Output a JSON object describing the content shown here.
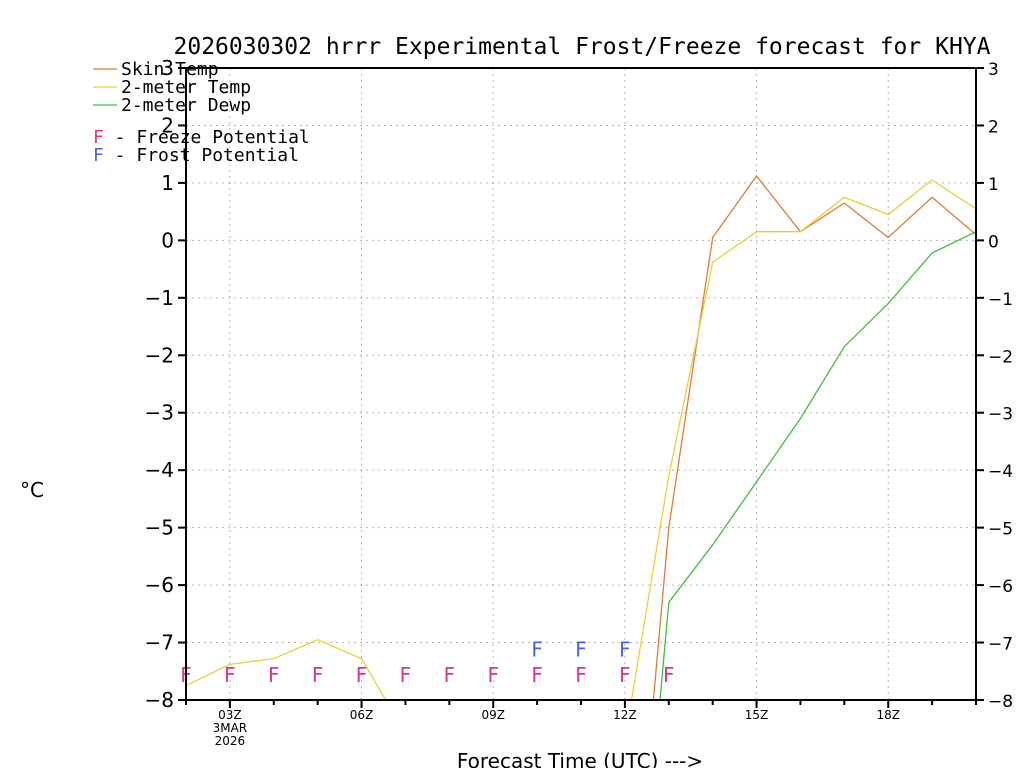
{
  "chart_data": {
    "type": "line",
    "title": "2026030302 hrrr Experimental Frost/Freeze forecast for KHYA",
    "ylabel": "°C",
    "xlabel": "Forecast Time (UTC) --->",
    "ylim": [
      -8,
      3
    ],
    "xlim": [
      2,
      20
    ],
    "yticks": [
      3,
      2,
      1,
      0,
      -1,
      -2,
      -3,
      -4,
      -5,
      -6,
      -7,
      -8
    ],
    "ytick_labels": [
      "3",
      "2",
      "1",
      "0",
      "−1",
      "−2",
      "−3",
      "−4",
      "−5",
      "−6",
      "−7",
      "−8"
    ],
    "xticks": [
      {
        "x": 3,
        "label": "03Z",
        "sub": [
          "3MAR",
          "2026"
        ]
      },
      {
        "x": 6,
        "label": "06Z",
        "sub": []
      },
      {
        "x": 9,
        "label": "09Z",
        "sub": []
      },
      {
        "x": 12,
        "label": "12Z",
        "sub": []
      },
      {
        "x": 15,
        "label": "15Z",
        "sub": []
      },
      {
        "x": 18,
        "label": "18Z",
        "sub": []
      }
    ],
    "grid": true,
    "legend": [
      {
        "name": "Skin Temp",
        "color": "#e07b39"
      },
      {
        "name": "2-meter Temp",
        "color": "#e8d03a"
      },
      {
        "name": "2-meter Dewp",
        "color": "#3cc23c"
      }
    ],
    "marker_legend": [
      {
        "symbol": "F",
        "text": " - Freeze Potential",
        "color": "#e0348c"
      },
      {
        "symbol": "F",
        "text": " - Frost Potential",
        "color": "#4a62d8"
      }
    ],
    "series": [
      {
        "name": "Skin Temp",
        "color": "#e07b39",
        "x": [
          12.65,
          13,
          14,
          15,
          16,
          17,
          18,
          19,
          20
        ],
        "y": [
          -8,
          -5.0,
          0.05,
          1.12,
          0.15,
          0.65,
          0.05,
          0.75,
          0.1
        ]
      },
      {
        "name": "2-meter Temp",
        "color": "#e8d03a",
        "x": [
          2,
          3,
          4,
          5,
          6,
          6.55,
          12.15,
          13,
          14,
          15,
          16,
          17,
          18,
          19,
          20
        ],
        "y": [
          -7.75,
          -7.38,
          -7.28,
          -6.95,
          -7.28,
          -8,
          -8,
          -4.1,
          -0.38,
          0.15,
          0.15,
          0.75,
          0.45,
          1.05,
          0.55
        ]
      },
      {
        "name": "2-meter Dewp",
        "color": "#3cc23c",
        "x": [
          12.8,
          13,
          14,
          15,
          16,
          17,
          18,
          19,
          20
        ],
        "y": [
          -8,
          -6.3,
          -5.3,
          -4.2,
          -3.1,
          -1.85,
          -1.1,
          -0.22,
          0.15
        ]
      }
    ],
    "freeze_markers": {
      "symbol": "F",
      "color": "#e0348c",
      "x": [
        2,
        3,
        4,
        5,
        6,
        7,
        8,
        9,
        10,
        11,
        12,
        13
      ],
      "y": -7.55
    },
    "frost_markers": {
      "symbol": "F",
      "color": "#4a62d8",
      "x": [
        10,
        11,
        12
      ],
      "y": -7.1
    }
  }
}
